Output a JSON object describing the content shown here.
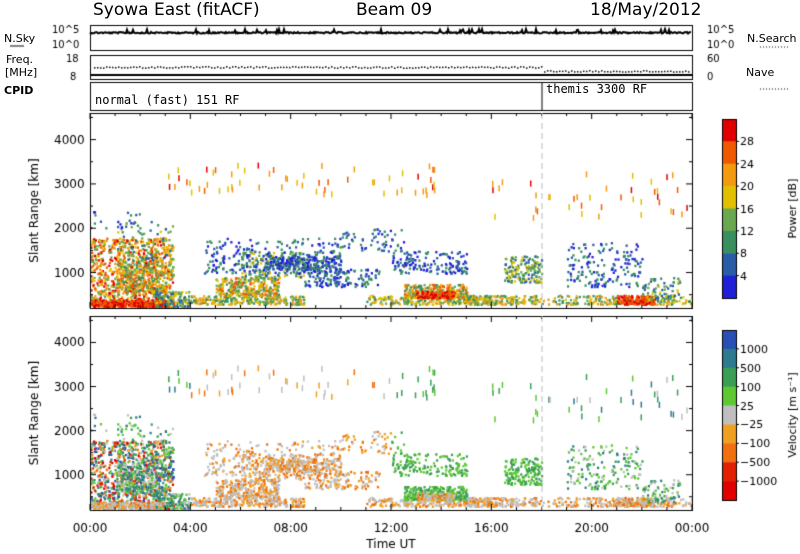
{
  "header": {
    "station": "Syowa East (fitACF)",
    "beam": "Beam 09",
    "date": "18/May/2012"
  },
  "panels": {
    "nsky": {
      "label": "N.Sky",
      "ticks": [
        "10^5",
        "10^0"
      ],
      "right_label": "N.Search",
      "right_ticks": [
        "10^5",
        "10^0"
      ]
    },
    "freq": {
      "label_line1": "Freq.",
      "label_line2": "[MHz]",
      "ticks": [
        "18",
        "8"
      ],
      "right_label": "Nave",
      "right_ticks": [
        "60",
        "0"
      ]
    },
    "cpid": {
      "label": "CPID",
      "modes": [
        "normal (fast) 151 RF",
        "themis 3300 RF"
      ]
    }
  },
  "chart_data": [
    {
      "type": "heatmap",
      "name": "power",
      "ylabel": "Slant Range [km]",
      "ytick_labels": [
        "1000",
        "2000",
        "3000",
        "4000"
      ],
      "ylim": [
        200,
        4600
      ],
      "colorbar_label": "Power [dB]",
      "colorbar_ticks": [
        "4",
        "8",
        "12",
        "16",
        "20",
        "24",
        "28"
      ],
      "colors": [
        "#1f1fd6",
        "#2a5ca8",
        "#3a8f5e",
        "#6aa84f",
        "#e0c000",
        "#f39a11",
        "#ef5a00",
        "#e00000"
      ]
    },
    {
      "type": "heatmap",
      "name": "velocity",
      "ylabel": "Slant Range [km]",
      "ytick_labels": [
        "1000",
        "2000",
        "3000",
        "4000"
      ],
      "ylim": [
        200,
        4600
      ],
      "xlabel": "Time UT",
      "xtick_labels": [
        "00:00",
        "04:00",
        "08:00",
        "12:00",
        "16:00",
        "20:00",
        "00:00"
      ],
      "colorbar_label": "Velocity [m s⁻¹]",
      "colorbar_ticks": [
        "1000",
        "500",
        "100",
        "25",
        "−25",
        "−100",
        "−500",
        "−1000"
      ],
      "colors": [
        "#2850b4",
        "#2e7a8e",
        "#3a9e55",
        "#5ec832",
        "#bfbfbf",
        "#f0a020",
        "#f07010",
        "#e02000",
        "#e00000"
      ]
    }
  ],
  "mode_change_hour": 18
}
